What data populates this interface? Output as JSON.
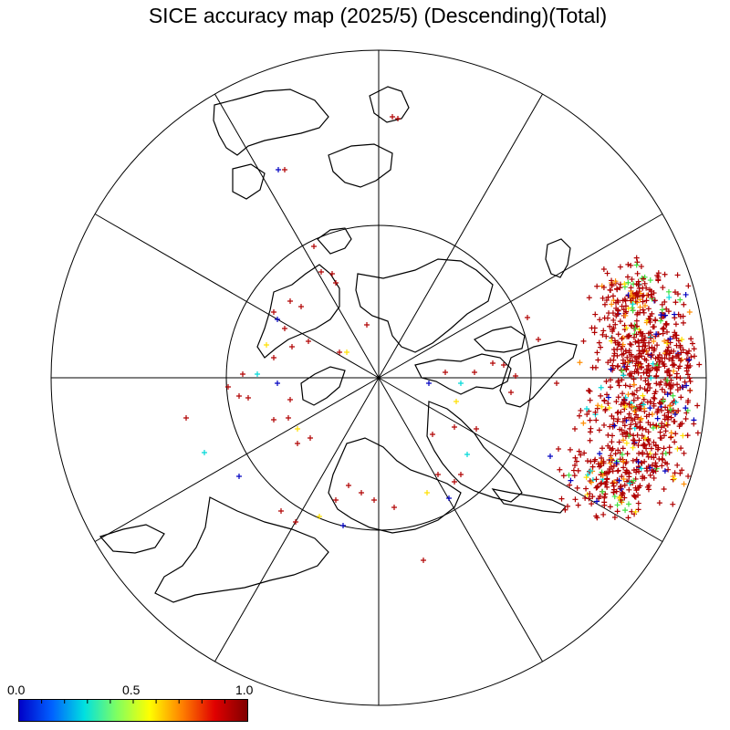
{
  "title": "SICE accuracy map (2025/5) (Descending)(Total)",
  "map": {
    "projection": "north-polar-stereographic",
    "meridian_count": 12,
    "latitude_rings": 2,
    "coastline_color": "#000000",
    "grid_color": "#000000",
    "marker_symbol": "+"
  },
  "colorbar": {
    "min_label": "0.0",
    "mid_label": "0.5",
    "max_label": "1.0",
    "range": [
      0.0,
      1.0
    ],
    "palette": [
      "#0000c8",
      "#0060ff",
      "#00e0e0",
      "#80ff60",
      "#ffff00",
      "#ff8000",
      "#e00000",
      "#800000"
    ]
  },
  "marker_colors": {
    "high": "#b00000",
    "mid_high": "#ff8c00",
    "mid": "#ffe000",
    "low_mid": "#00d8d8",
    "low": "#0000c0",
    "green": "#40e040"
  }
}
